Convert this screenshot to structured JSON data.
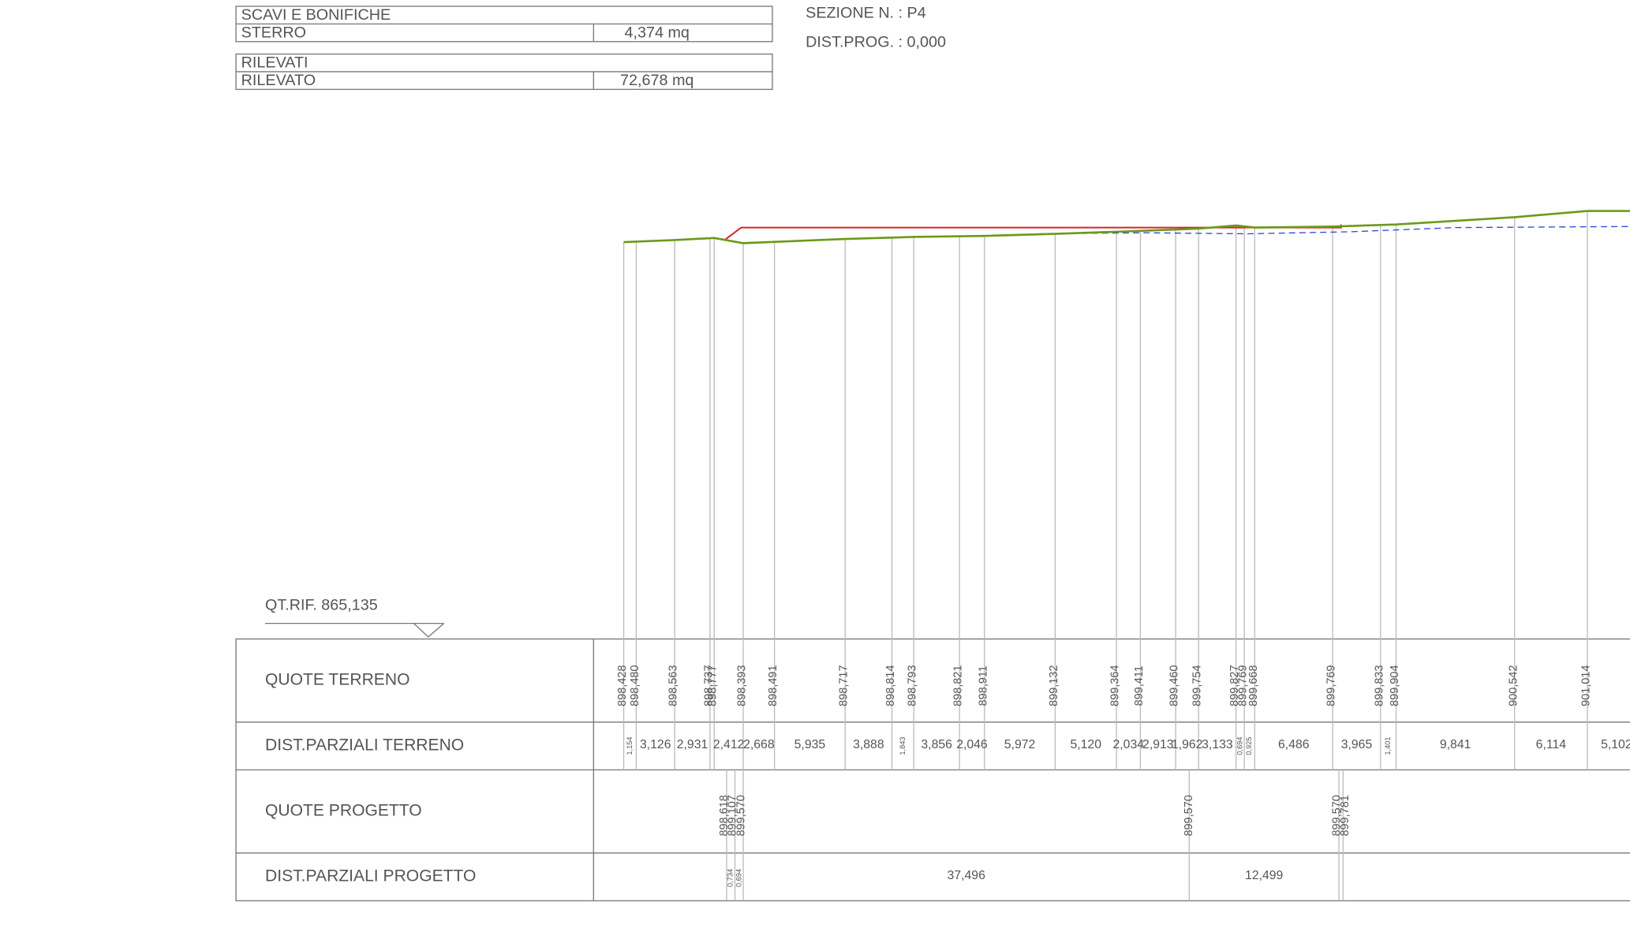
{
  "summary": [
    {
      "title": "SCAVI E BONIFICHE",
      "rows": [
        [
          "STERRO",
          "4,374 mq"
        ]
      ]
    },
    {
      "title": "RILEVATI",
      "rows": [
        [
          "RILEVATO",
          "72,678 mq"
        ]
      ]
    }
  ],
  "section": {
    "number": "SEZIONE N. : P4",
    "progressive": "DIST.PROG. : 0,000"
  },
  "reference": "QT.RIF. 865,135",
  "guitar": {
    "labels": [
      "QUOTE TERRENO",
      "DIST.PARZIALI TERRENO",
      "QUOTE PROGETTO",
      "DIST.PARZIALI PROGETTO"
    ],
    "terrain_quotes": [
      "898,428",
      "898,480",
      "898,563",
      "898,737",
      "898,777",
      "898,393",
      "898,491",
      "898,717",
      "898,814",
      "898,793",
      "898,821",
      "898,911",
      "899,132",
      "899,364",
      "899,411",
      "899,460",
      "899,754",
      "899,827",
      "899,769",
      "899,668",
      "899,769",
      "899,833",
      "899,904",
      "900,542",
      "901,014"
    ],
    "terrain_distances": [
      "1,154",
      "3,126",
      "2,931",
      "",
      "2,412",
      "2,668",
      "5,935",
      "3,888",
      "1,843",
      "3,856",
      "2,046",
      "5,972",
      "5,120",
      "2,034",
      "2,913",
      "1,962",
      "3,133",
      "0,694",
      "0,925",
      "6,486",
      "3,965",
      "1,401",
      "9,841",
      "6,114",
      "5,102"
    ],
    "project_quotes": [
      "898,618",
      "899,107",
      "899,570",
      "899,570",
      "899,570",
      "899,781"
    ],
    "project_distances": [
      "0,734",
      "0,694",
      "37,496",
      "12,499"
    ]
  }
}
